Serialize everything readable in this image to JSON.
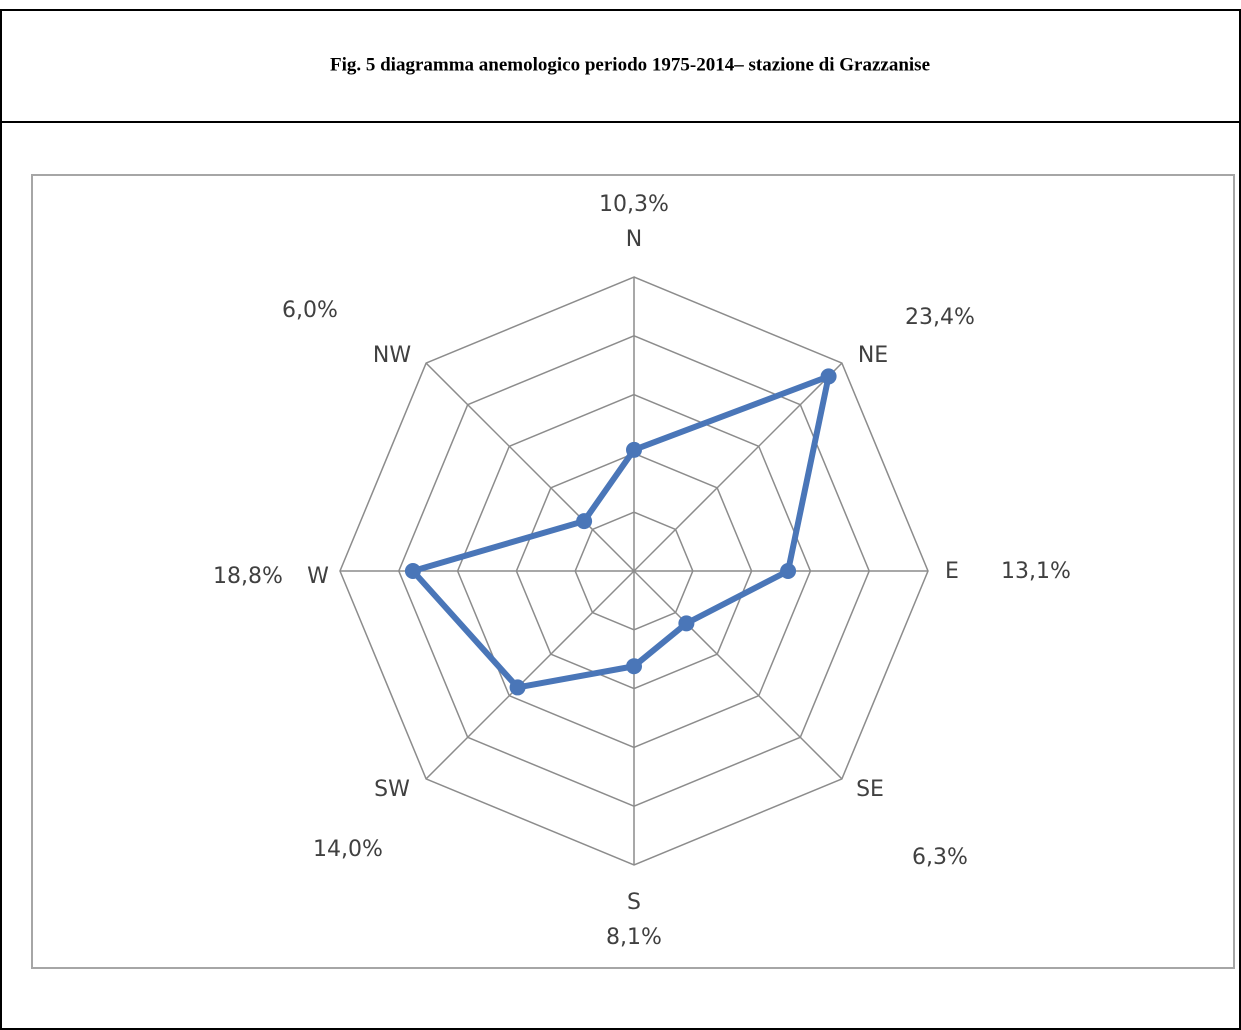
{
  "chart_data": {
    "type": "radar",
    "title": "Fig. 5  diagramma anemologico periodo 1975-2014– stazione di Grazzanise",
    "categories": [
      "N",
      "NE",
      "E",
      "SE",
      "S",
      "SW",
      "W",
      "NW"
    ],
    "values": [
      10.3,
      23.4,
      13.1,
      6.3,
      8.1,
      14.0,
      18.8,
      6.0
    ],
    "value_labels": [
      "10,3%",
      "23,4%",
      "13,1%",
      "6,3%",
      "8,1%",
      "14,0%",
      "18,8%",
      "6,0%"
    ],
    "color": "#4a76b8",
    "ylim": [
      0,
      25
    ],
    "yticks": [
      0,
      5,
      10,
      15,
      20,
      25
    ],
    "grid": true
  }
}
